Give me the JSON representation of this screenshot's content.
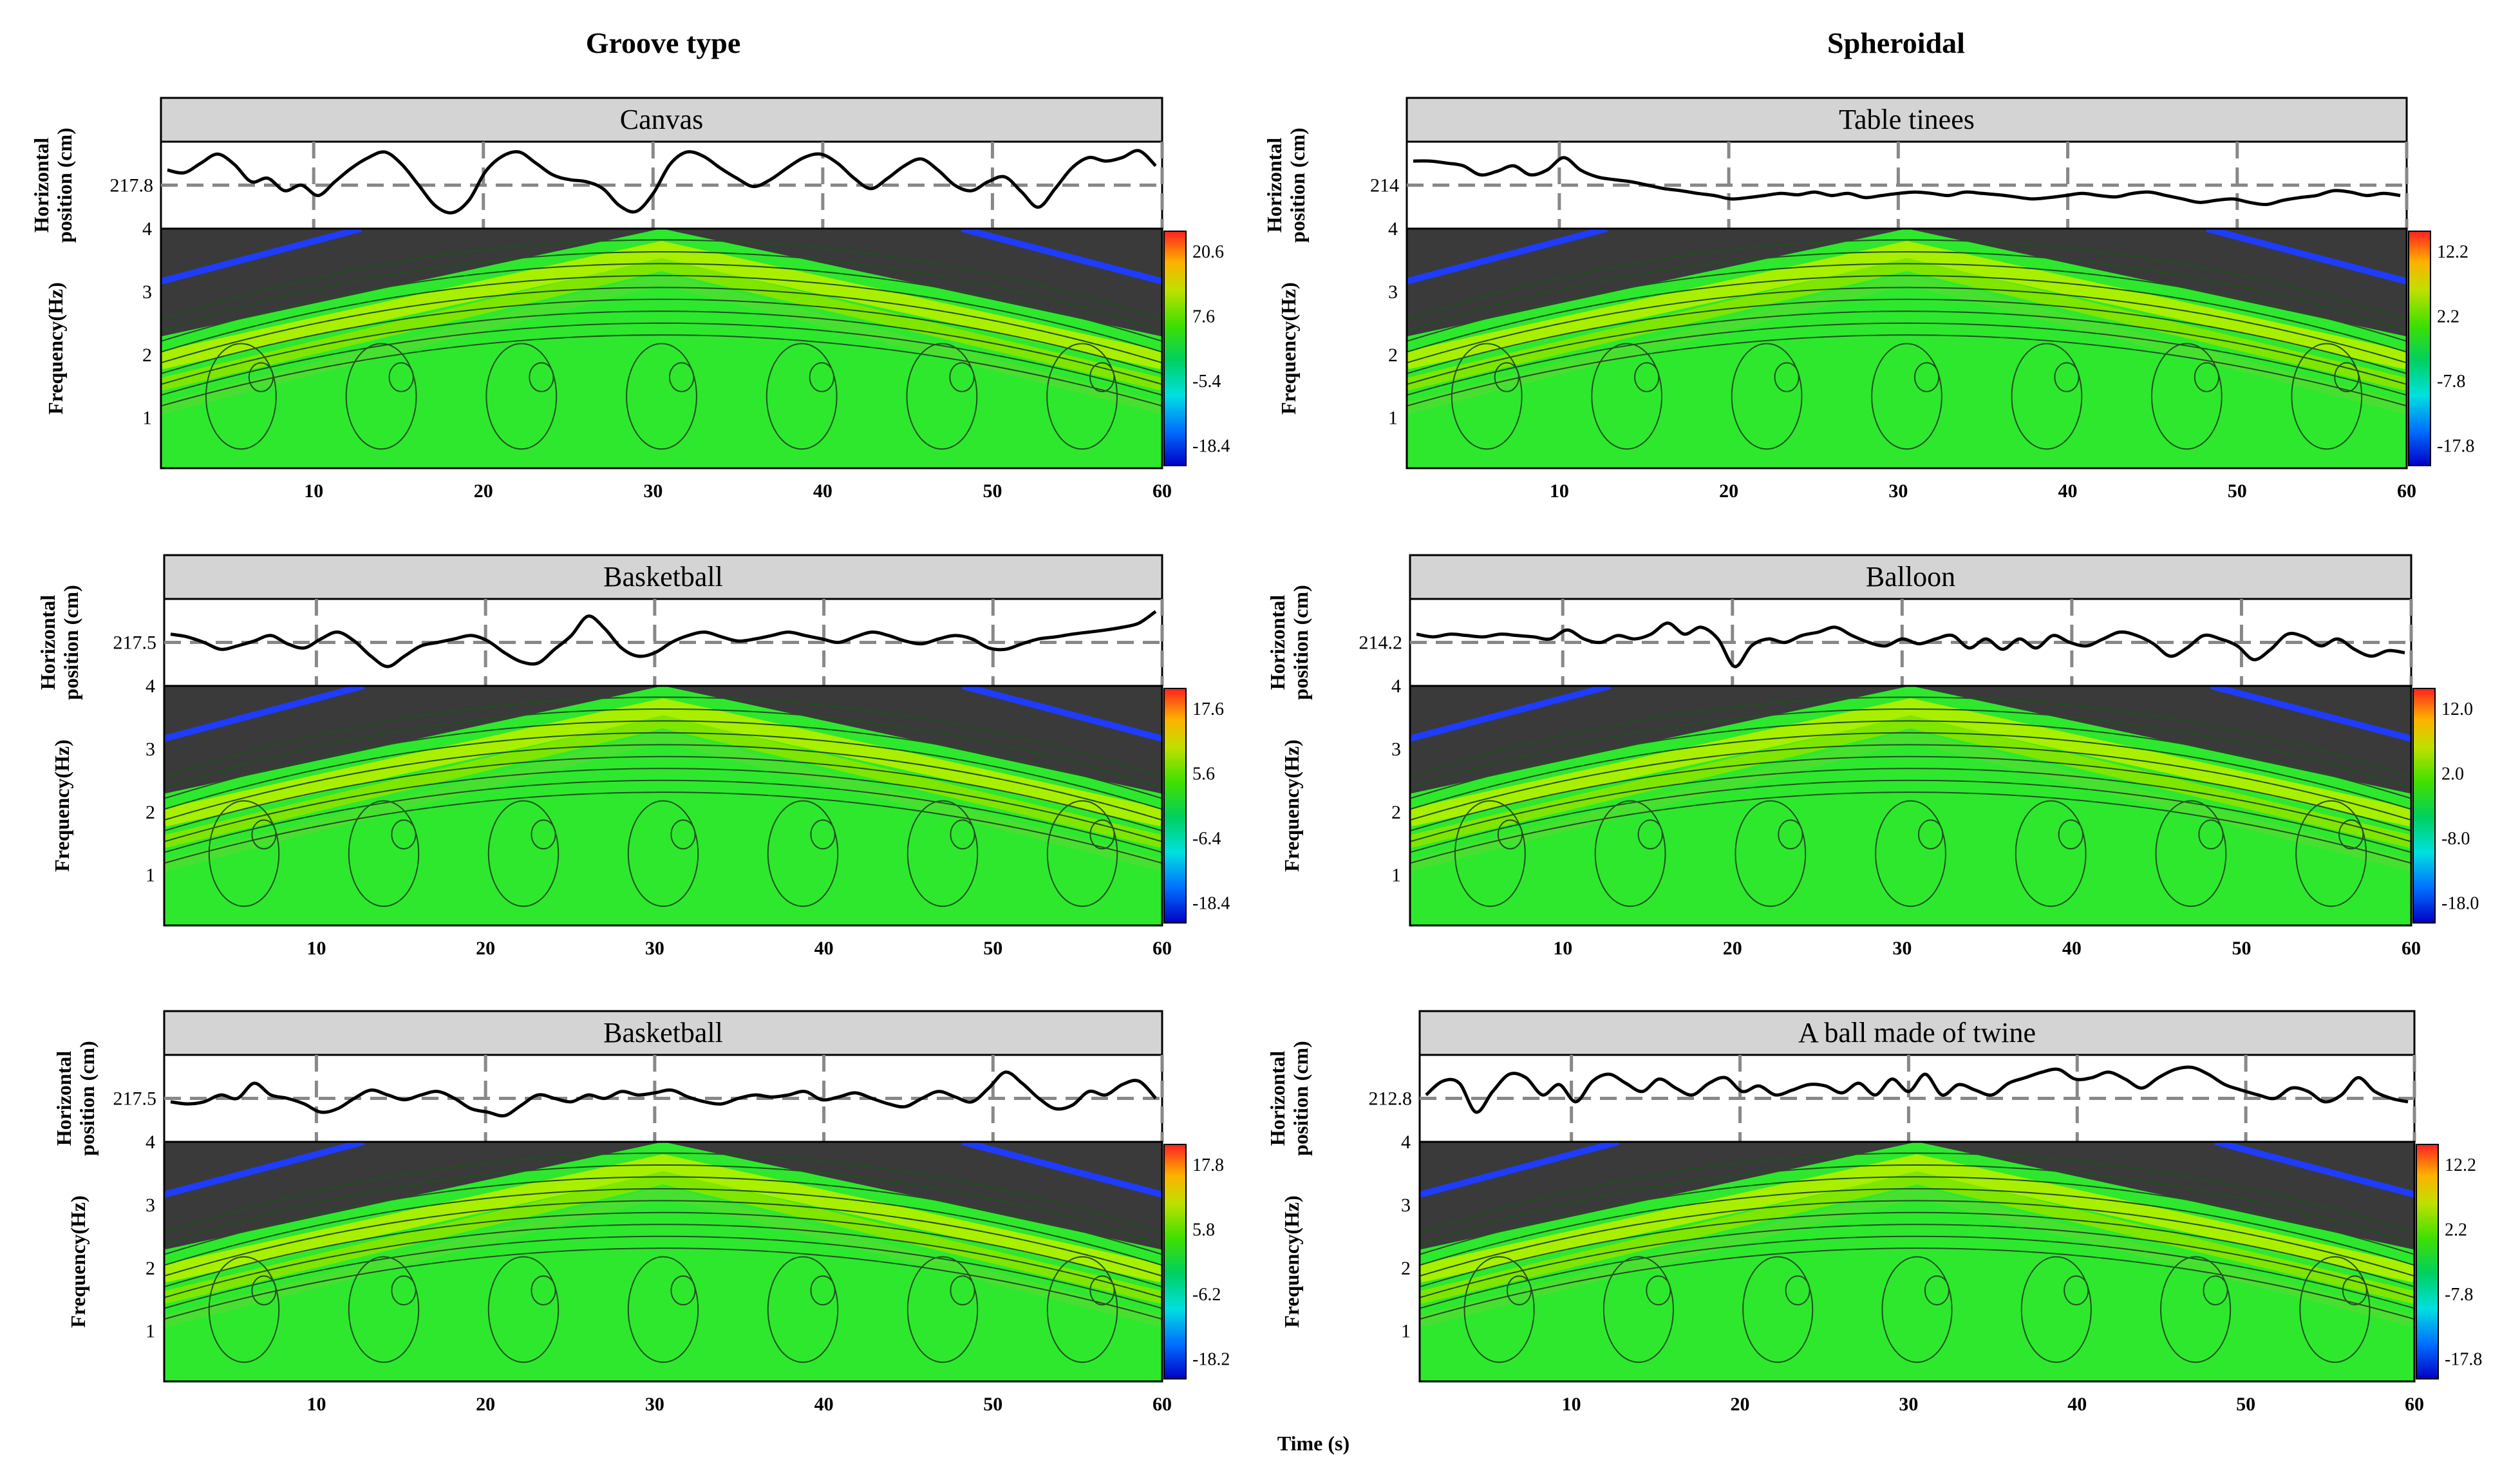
{
  "column_titles": [
    "Groove type",
    "Spheroidal"
  ],
  "shared_xlabel": "Time (s)",
  "chart_data": [
    {
      "type": "heatmap",
      "column": "Groove type",
      "title": "Canvas",
      "ref_value": "217.8",
      "top_ylabel": [
        "Horizontal",
        "position  (cm)"
      ],
      "bottom_ylabel": "Frequency(Hz)",
      "x_ticks": [
        "10",
        "20",
        "30",
        "40",
        "50",
        "60"
      ],
      "y_ticks": [
        "1",
        "2",
        "3",
        "4"
      ],
      "colorbar_ticks": [
        "20.6",
        "7.6",
        "-5.4",
        "-18.4"
      ],
      "xlim": [
        1,
        60
      ],
      "ylim": [
        0.2,
        4
      ],
      "position_series": [
        0.72,
        0.68,
        0.82,
        0.95,
        0.8,
        0.55,
        0.6,
        0.42,
        0.5,
        0.35,
        0.55,
        0.75,
        0.9,
        0.98,
        0.8,
        0.5,
        0.2,
        0.1,
        0.28,
        0.7,
        0.92,
        0.98,
        0.82,
        0.65,
        0.58,
        0.55,
        0.45,
        0.2,
        0.12,
        0.38,
        0.8,
        0.98,
        0.92,
        0.75,
        0.6,
        0.48,
        0.58,
        0.75,
        0.9,
        0.95,
        0.82,
        0.6,
        0.45,
        0.6,
        0.78,
        0.88,
        0.72,
        0.5,
        0.42,
        0.55,
        0.62,
        0.4,
        0.18,
        0.45,
        0.75,
        0.9,
        0.85,
        0.9,
        1.0,
        0.78
      ]
    },
    {
      "type": "heatmap",
      "column": "Spheroidal",
      "title": "Table tinees",
      "ref_value": "214",
      "top_ylabel": [
        "Horizontal",
        "position  (cm)"
      ],
      "bottom_ylabel": "Frequency(Hz)",
      "x_ticks": [
        "10",
        "20",
        "30",
        "40",
        "50",
        "60"
      ],
      "y_ticks": [
        "1",
        "2",
        "3",
        "4"
      ],
      "colorbar_ticks": [
        "12.2",
        "2.2",
        "-7.8",
        "-17.8"
      ],
      "xlim": [
        1,
        60
      ],
      "ylim": [
        0.2,
        4
      ],
      "position_series": [
        0.85,
        0.85,
        0.82,
        0.78,
        0.65,
        0.7,
        0.78,
        0.65,
        0.72,
        0.9,
        0.72,
        0.62,
        0.58,
        0.55,
        0.5,
        0.45,
        0.42,
        0.38,
        0.35,
        0.3,
        0.32,
        0.35,
        0.38,
        0.36,
        0.4,
        0.35,
        0.38,
        0.32,
        0.35,
        0.38,
        0.4,
        0.38,
        0.35,
        0.4,
        0.38,
        0.36,
        0.33,
        0.3,
        0.32,
        0.35,
        0.38,
        0.35,
        0.33,
        0.38,
        0.4,
        0.35,
        0.3,
        0.25,
        0.28,
        0.3,
        0.25,
        0.22,
        0.28,
        0.32,
        0.35,
        0.42,
        0.4,
        0.35,
        0.38,
        0.35
      ]
    },
    {
      "type": "heatmap",
      "column": "Groove type",
      "title": "Basketball",
      "ref_value": "217.5",
      "top_ylabel": [
        "Horizontal",
        "position  (cm)"
      ],
      "bottom_ylabel": "Frequency(Hz)",
      "x_ticks": [
        "10",
        "20",
        "30",
        "40",
        "50",
        "60"
      ],
      "y_ticks": [
        "1",
        "2",
        "3",
        "4"
      ],
      "colorbar_ticks": [
        "17.6",
        "5.6",
        "-6.4",
        "-18.4"
      ],
      "xlim": [
        1,
        60
      ],
      "ylim": [
        0.2,
        4
      ],
      "position_series": [
        0.62,
        0.58,
        0.5,
        0.4,
        0.45,
        0.52,
        0.6,
        0.48,
        0.42,
        0.55,
        0.65,
        0.52,
        0.3,
        0.15,
        0.3,
        0.45,
        0.5,
        0.55,
        0.6,
        0.52,
        0.35,
        0.22,
        0.2,
        0.4,
        0.6,
        0.88,
        0.7,
        0.42,
        0.3,
        0.35,
        0.5,
        0.6,
        0.65,
        0.58,
        0.52,
        0.55,
        0.6,
        0.65,
        0.6,
        0.55,
        0.5,
        0.58,
        0.65,
        0.6,
        0.52,
        0.48,
        0.55,
        0.6,
        0.55,
        0.42,
        0.4,
        0.48,
        0.55,
        0.58,
        0.62,
        0.65,
        0.68,
        0.72,
        0.78,
        0.95
      ]
    },
    {
      "type": "heatmap",
      "column": "Spheroidal",
      "title": "Balloon",
      "ref_value": "214.2",
      "top_ylabel": [
        "Horizontal",
        "position  (cm)"
      ],
      "bottom_ylabel": "Frequency(Hz)",
      "x_ticks": [
        "10",
        "20",
        "30",
        "40",
        "50",
        "60"
      ],
      "y_ticks": [
        "1",
        "2",
        "3",
        "4"
      ],
      "colorbar_ticks": [
        "12.0",
        "2.0",
        "-8.0",
        "-18.0"
      ],
      "xlim": [
        1,
        60
      ],
      "ylim": [
        0.2,
        4
      ],
      "position_series": [
        0.62,
        0.58,
        0.62,
        0.6,
        0.58,
        0.62,
        0.6,
        0.58,
        0.55,
        0.68,
        0.55,
        0.5,
        0.6,
        0.55,
        0.62,
        0.78,
        0.62,
        0.72,
        0.55,
        0.15,
        0.45,
        0.55,
        0.5,
        0.6,
        0.65,
        0.72,
        0.6,
        0.5,
        0.45,
        0.55,
        0.48,
        0.55,
        0.6,
        0.42,
        0.55,
        0.4,
        0.55,
        0.42,
        0.6,
        0.5,
        0.45,
        0.55,
        0.65,
        0.6,
        0.48,
        0.3,
        0.42,
        0.6,
        0.55,
        0.45,
        0.25,
        0.4,
        0.62,
        0.58,
        0.45,
        0.55,
        0.4,
        0.3,
        0.38,
        0.35
      ]
    },
    {
      "type": "heatmap",
      "column": "Groove type",
      "title": "Basketball",
      "ref_value": "217.5",
      "top_ylabel": [
        "Horizontal",
        "position  (cm)"
      ],
      "bottom_ylabel": "Frequency(Hz)",
      "x_ticks": [
        "10",
        "20",
        "30",
        "40",
        "50",
        "60"
      ],
      "y_ticks": [
        "1",
        "2",
        "3",
        "4"
      ],
      "colorbar_ticks": [
        "17.8",
        "5.8",
        "-6.2",
        "-18.2"
      ],
      "xlim": [
        1,
        60
      ],
      "ylim": [
        0.2,
        4
      ],
      "position_series": [
        0.45,
        0.42,
        0.45,
        0.55,
        0.5,
        0.72,
        0.55,
        0.5,
        0.42,
        0.3,
        0.35,
        0.5,
        0.62,
        0.55,
        0.48,
        0.55,
        0.6,
        0.5,
        0.35,
        0.3,
        0.25,
        0.4,
        0.55,
        0.5,
        0.45,
        0.55,
        0.5,
        0.6,
        0.55,
        0.58,
        0.62,
        0.52,
        0.45,
        0.42,
        0.5,
        0.55,
        0.52,
        0.55,
        0.6,
        0.48,
        0.52,
        0.58,
        0.5,
        0.42,
        0.38,
        0.5,
        0.6,
        0.52,
        0.45,
        0.65,
        0.88,
        0.72,
        0.5,
        0.35,
        0.4,
        0.6,
        0.55,
        0.7,
        0.75,
        0.5
      ]
    },
    {
      "type": "heatmap",
      "column": "Spheroidal",
      "title": "A ball made of twine",
      "ref_value": "212.8",
      "top_ylabel": [
        "Horizontal",
        "position  (cm)"
      ],
      "bottom_ylabel": "Frequency(Hz)",
      "x_ticks": [
        "10",
        "20",
        "30",
        "40",
        "50",
        "60"
      ],
      "y_ticks": [
        "1",
        "2",
        "3",
        "4"
      ],
      "colorbar_ticks": [
        "12.2",
        "2.2",
        "-7.8",
        "-17.8"
      ],
      "xlim": [
        1,
        60
      ],
      "ylim": [
        0.2,
        4
      ],
      "position_series": [
        0.55,
        0.75,
        0.72,
        0.3,
        0.6,
        0.85,
        0.8,
        0.55,
        0.7,
        0.45,
        0.75,
        0.85,
        0.72,
        0.6,
        0.78,
        0.65,
        0.55,
        0.72,
        0.8,
        0.6,
        0.68,
        0.55,
        0.62,
        0.7,
        0.68,
        0.58,
        0.72,
        0.55,
        0.78,
        0.6,
        0.85,
        0.55,
        0.7,
        0.62,
        0.55,
        0.72,
        0.8,
        0.88,
        0.92,
        0.78,
        0.8,
        0.88,
        0.78,
        0.65,
        0.8,
        0.92,
        0.95,
        0.85,
        0.7,
        0.62,
        0.55,
        0.5,
        0.65,
        0.6,
        0.45,
        0.55,
        0.8,
        0.6,
        0.5,
        0.45
      ]
    }
  ]
}
